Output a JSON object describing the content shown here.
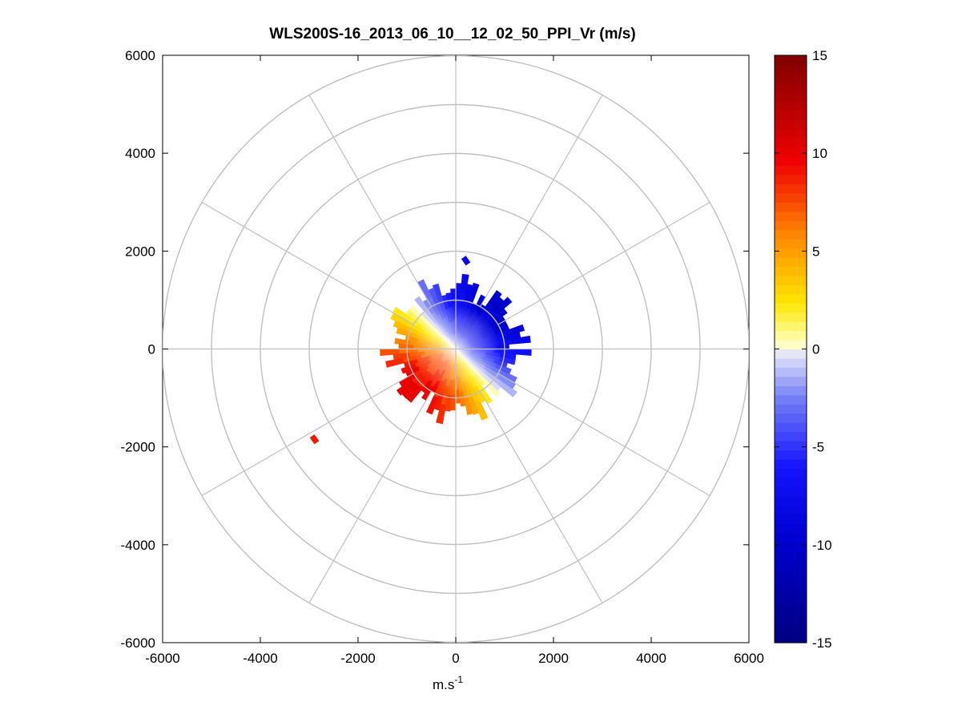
{
  "chart_data": {
    "type": "heatmap",
    "subtype": "polar-ppi",
    "title": "WLS200S-16_2013_06_10__12_02_50_PPI_Vr (m/s)",
    "xlabel": "m.s",
    "xlabel_superscript": "-1",
    "ylabel": "",
    "xlim": [
      -6000,
      6000
    ],
    "ylim": [
      -6000,
      6000
    ],
    "x_ticks": [
      "-6000",
      "-4000",
      "-2000",
      "0",
      "2000",
      "4000",
      "6000"
    ],
    "y_ticks": [
      "6000",
      "4000",
      "2000",
      "0",
      "-2000",
      "-4000",
      "-6000"
    ],
    "x_tick_values": [
      -6000,
      -4000,
      -2000,
      0,
      2000,
      4000,
      6000
    ],
    "y_tick_values": [
      6000,
      4000,
      2000,
      0,
      -2000,
      -4000,
      -6000
    ],
    "polar_grid": {
      "ring_radii": [
        1000,
        2000,
        3000,
        4000,
        5000,
        6000
      ],
      "spoke_angles_deg": [
        0,
        30,
        60,
        90,
        120,
        150,
        180,
        210,
        240,
        270,
        300,
        330
      ],
      "grid_color": "#c0c0c0"
    },
    "colorbar": {
      "range": [
        -15,
        15
      ],
      "ticks": [
        "15",
        "10",
        "5",
        "0",
        "-5",
        "-10",
        "-15"
      ],
      "tick_values": [
        15,
        10,
        5,
        0,
        -5,
        -10,
        -15
      ],
      "colormap": "blue-white-yellow-red"
    },
    "field_description_values": {
      "outer_range_m": 1400,
      "north_east_velocity_ms": -10,
      "south_west_velocity_ms": 8
    },
    "outlier_points": [
      {
        "x": -2900,
        "y": -1850,
        "value": 9
      },
      {
        "x": 200,
        "y": 1800,
        "value": -8
      }
    ]
  }
}
